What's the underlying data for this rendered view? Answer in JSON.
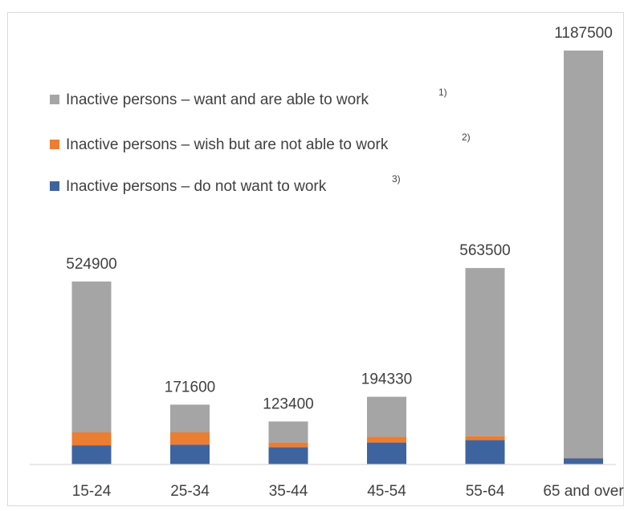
{
  "chart_data": {
    "type": "stacked-bar",
    "title": "",
    "xlabel": "",
    "ylabel": "",
    "grid": false,
    "legend_position": "top-left",
    "ylim": [
      0,
      1187500
    ],
    "categories": [
      "15-24",
      "25-34",
      "35-44",
      "45-54",
      "55-64",
      "65 and over"
    ],
    "totals": [
      "524900",
      "171600",
      "123400",
      "194330",
      "563500",
      "1187500"
    ],
    "series": [
      {
        "name": "Inactive persons – do not want to work",
        "note": "3)",
        "color": "#3e64a0",
        "values": [
          55000,
          57000,
          50000,
          63000,
          70000,
          18000
        ]
      },
      {
        "name": "Inactive persons – wish but are not able to work",
        "note": "2)",
        "color": "#ed7d31",
        "values": [
          37000,
          35000,
          13000,
          17000,
          12000,
          2000
        ]
      },
      {
        "name": "Inactive persons – want and are able to work",
        "note": "1)",
        "color": "#a5a5a5",
        "values": [
          432900,
          79600,
          60400,
          114330,
          481500,
          1167500
        ]
      }
    ]
  }
}
